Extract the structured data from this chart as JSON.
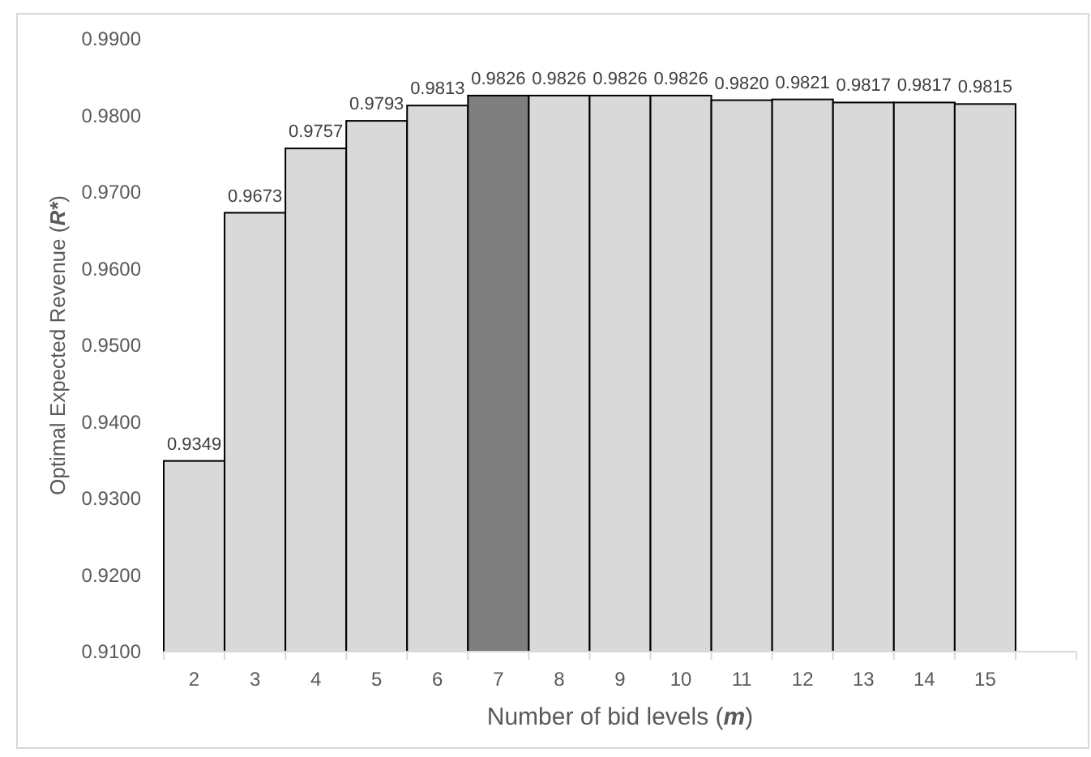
{
  "chart_data": {
    "type": "bar",
    "xlabel": "Number of bid levels (m)",
    "ylabel": "Optimal Expected Revenue (R*)",
    "categories": [
      "2",
      "3",
      "4",
      "5",
      "6",
      "7",
      "8",
      "9",
      "10",
      "11",
      "12",
      "13",
      "14",
      "15",
      null
    ],
    "values": [
      0.9349,
      0.9673,
      0.9757,
      0.9793,
      0.9813,
      0.9826,
      0.9826,
      0.9826,
      0.9826,
      0.982,
      0.9821,
      0.9817,
      0.9817,
      0.9815,
      null
    ],
    "value_labels": [
      "0.9349",
      "0.9673",
      "0.9757",
      "0.9793",
      "0.9813",
      "0.9826",
      "0.9826",
      "0.9826",
      "0.9826",
      "0.9820",
      "0.9821",
      "0.9817",
      "0.9817",
      "0.9815",
      null
    ],
    "colors": [
      "#d9d9d9",
      "#d9d9d9",
      "#d9d9d9",
      "#d9d9d9",
      "#d9d9d9",
      "#7f7f7f",
      "#d9d9d9",
      "#d9d9d9",
      "#d9d9d9",
      "#d9d9d9",
      "#d9d9d9",
      "#d9d9d9",
      "#d9d9d9",
      "#d9d9d9",
      null
    ],
    "ylim": [
      0.91,
      0.99
    ],
    "yticks": [
      {
        "value": 0.91,
        "label": "0.9100"
      },
      {
        "value": 0.92,
        "label": "0.9200"
      },
      {
        "value": 0.93,
        "label": "0.9300"
      },
      {
        "value": 0.94,
        "label": "0.9400"
      },
      {
        "value": 0.95,
        "label": "0.9500"
      },
      {
        "value": 0.96,
        "label": "0.9600"
      },
      {
        "value": 0.97,
        "label": "0.9700"
      },
      {
        "value": 0.98,
        "label": "0.9800"
      },
      {
        "value": 0.99,
        "label": "0.9900"
      }
    ],
    "grid": false
  }
}
